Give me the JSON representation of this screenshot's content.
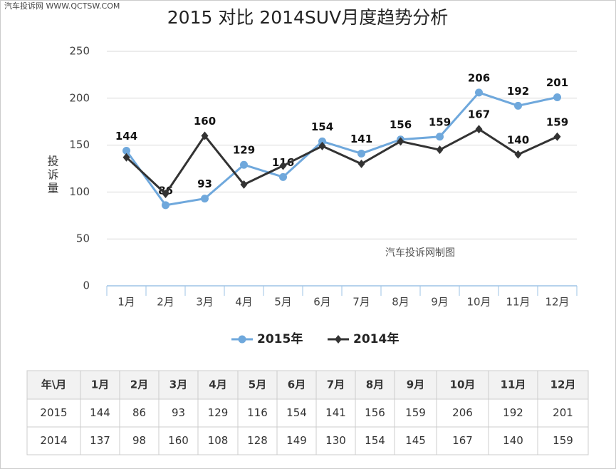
{
  "watermark": "汽车投诉网  WWW.QCTSW.COM",
  "chart_data": {
    "type": "line",
    "title": "2015 对比 2014SUV月度趋势分析",
    "y_label": "投诉量",
    "annotation": "汽车投诉网制图",
    "categories": [
      "1月",
      "2月",
      "3月",
      "4月",
      "5月",
      "6月",
      "7月",
      "8月",
      "9月",
      "10月",
      "11月",
      "12月"
    ],
    "series": [
      {
        "name": "2015年",
        "color": "#6fa8dc",
        "marker": "circle",
        "values": [
          144,
          86,
          93,
          129,
          116,
          154,
          141,
          156,
          159,
          206,
          192,
          201
        ],
        "show_labels": [
          true,
          true,
          true,
          true,
          true,
          true,
          true,
          true,
          true,
          true,
          true,
          true
        ]
      },
      {
        "name": "2014年",
        "color": "#333333",
        "marker": "diamond",
        "values": [
          137,
          98,
          160,
          108,
          128,
          149,
          130,
          154,
          145,
          167,
          140,
          159
        ],
        "show_labels": [
          false,
          false,
          true,
          false,
          false,
          false,
          false,
          false,
          false,
          true,
          true,
          true
        ]
      }
    ],
    "ylim": [
      0,
      250
    ],
    "yticks": [
      0,
      50,
      100,
      150,
      200,
      250
    ],
    "grid": true,
    "legend": "bottom"
  },
  "table": {
    "corner": "年\\月",
    "row_labels": [
      "2015",
      "2014"
    ]
  }
}
